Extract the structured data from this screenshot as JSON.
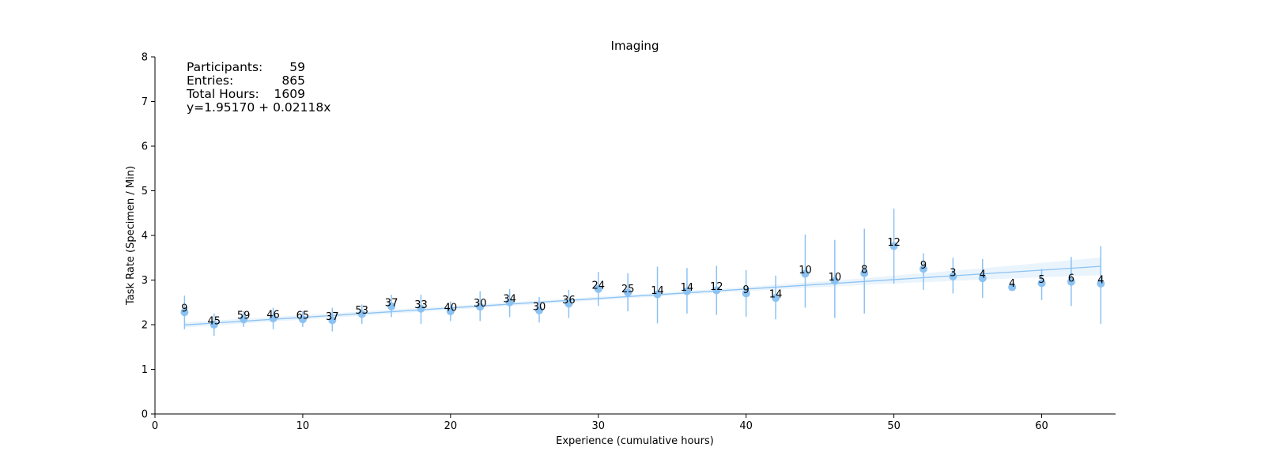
{
  "chart_data": {
    "type": "scatter",
    "title": "Imaging",
    "xlabel": "Experience (cumulative hours)",
    "ylabel": "Task Rate (Specimen / Min)",
    "xlim": [
      0,
      65
    ],
    "ylim": [
      0,
      8
    ],
    "xticks": [
      0,
      10,
      20,
      30,
      40,
      50,
      60
    ],
    "yticks": [
      0,
      1,
      2,
      3,
      4,
      5,
      6,
      7,
      8
    ],
    "grid": false,
    "color": "#8cc2f2",
    "points": [
      {
        "x": 2,
        "y": 2.28,
        "lo": 1.9,
        "hi": 2.65,
        "n": "9"
      },
      {
        "x": 4,
        "y": 2.0,
        "lo": 1.75,
        "hi": 2.25,
        "n": "45"
      },
      {
        "x": 6,
        "y": 2.12,
        "lo": 1.95,
        "hi": 2.3,
        "n": "59"
      },
      {
        "x": 8,
        "y": 2.14,
        "lo": 1.9,
        "hi": 2.38,
        "n": "46"
      },
      {
        "x": 10,
        "y": 2.12,
        "lo": 1.95,
        "hi": 2.3,
        "n": "65"
      },
      {
        "x": 12,
        "y": 2.1,
        "lo": 1.85,
        "hi": 2.38,
        "n": "37"
      },
      {
        "x": 14,
        "y": 2.24,
        "lo": 2.02,
        "hi": 2.45,
        "n": "53"
      },
      {
        "x": 16,
        "y": 2.41,
        "lo": 2.17,
        "hi": 2.67,
        "n": "37"
      },
      {
        "x": 18,
        "y": 2.36,
        "lo": 2.02,
        "hi": 2.67,
        "n": "33"
      },
      {
        "x": 20,
        "y": 2.3,
        "lo": 2.08,
        "hi": 2.52,
        "n": "40"
      },
      {
        "x": 22,
        "y": 2.4,
        "lo": 2.08,
        "hi": 2.75,
        "n": "30"
      },
      {
        "x": 24,
        "y": 2.5,
        "lo": 2.17,
        "hi": 2.8,
        "n": "34"
      },
      {
        "x": 26,
        "y": 2.32,
        "lo": 2.05,
        "hi": 2.62,
        "n": "30"
      },
      {
        "x": 28,
        "y": 2.47,
        "lo": 2.15,
        "hi": 2.78,
        "n": "36"
      },
      {
        "x": 30,
        "y": 2.8,
        "lo": 2.42,
        "hi": 3.18,
        "n": "24"
      },
      {
        "x": 32,
        "y": 2.72,
        "lo": 2.3,
        "hi": 3.15,
        "n": "25"
      },
      {
        "x": 34,
        "y": 2.68,
        "lo": 2.03,
        "hi": 3.3,
        "n": "14"
      },
      {
        "x": 36,
        "y": 2.75,
        "lo": 2.25,
        "hi": 3.27,
        "n": "14"
      },
      {
        "x": 38,
        "y": 2.77,
        "lo": 2.22,
        "hi": 3.32,
        "n": "12"
      },
      {
        "x": 40,
        "y": 2.7,
        "lo": 2.18,
        "hi": 3.22,
        "n": "9"
      },
      {
        "x": 42,
        "y": 2.6,
        "lo": 2.12,
        "hi": 3.1,
        "n": "14"
      },
      {
        "x": 44,
        "y": 3.14,
        "lo": 2.38,
        "hi": 4.02,
        "n": "10"
      },
      {
        "x": 46,
        "y": 2.98,
        "lo": 2.15,
        "hi": 3.9,
        "n": "10"
      },
      {
        "x": 48,
        "y": 3.15,
        "lo": 2.25,
        "hi": 4.15,
        "n": "8"
      },
      {
        "x": 50,
        "y": 3.76,
        "lo": 2.92,
        "hi": 4.6,
        "n": "12"
      },
      {
        "x": 52,
        "y": 3.25,
        "lo": 2.78,
        "hi": 3.6,
        "n": "9"
      },
      {
        "x": 54,
        "y": 3.08,
        "lo": 2.7,
        "hi": 3.5,
        "n": "3"
      },
      {
        "x": 56,
        "y": 3.04,
        "lo": 2.6,
        "hi": 3.47,
        "n": "4"
      },
      {
        "x": 58,
        "y": 2.84,
        "lo": 2.84,
        "hi": 2.84,
        "n": "4"
      },
      {
        "x": 60,
        "y": 2.93,
        "lo": 2.55,
        "hi": 3.25,
        "n": "5"
      },
      {
        "x": 62,
        "y": 2.96,
        "lo": 2.42,
        "hi": 3.52,
        "n": "6"
      },
      {
        "x": 64,
        "y": 2.92,
        "lo": 2.02,
        "hi": 3.76,
        "n": "4"
      }
    ],
    "regression": {
      "intercept": 1.9517,
      "slope": 0.02118,
      "x_range": [
        2,
        64
      ],
      "ci_halfwidth_start": 0.06,
      "ci_halfwidth_mid": 0.04,
      "ci_halfwidth_end": 0.2
    },
    "annotation": {
      "lines": [
        {
          "label": "Participants:",
          "value": "59"
        },
        {
          "label": "Entries:",
          "value": "865"
        },
        {
          "label": "Total Hours:",
          "value": "1609"
        }
      ],
      "equation": "y=1.95170 + 0.02118x"
    }
  }
}
